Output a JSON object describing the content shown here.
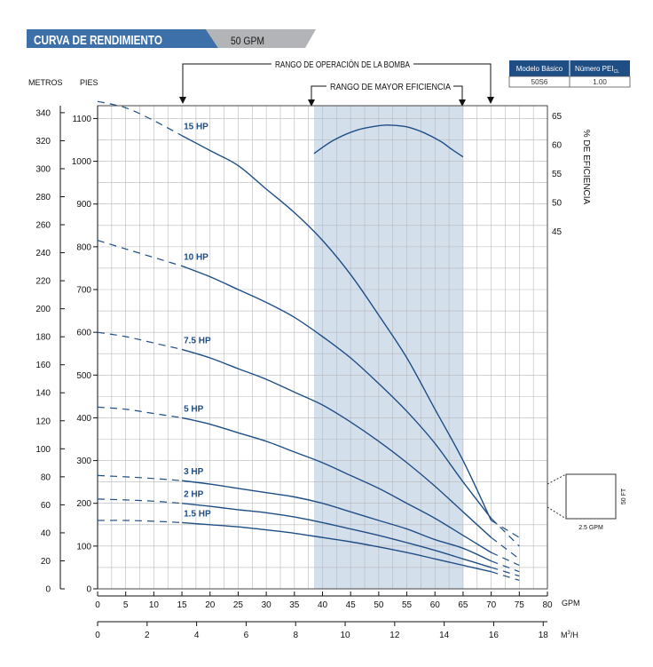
{
  "header": {
    "title": "CURVA DE RENDIMIENTO",
    "subtitle": "50 GPM",
    "title_color": "#3d6fa8",
    "subtitle_bg": "#a9abae"
  },
  "info_table": {
    "headers": [
      "Modelo Básico",
      "Número PEI"
    ],
    "pei_subscript": "CL",
    "values": [
      "50S6",
      "1.00"
    ],
    "header_color": "#1f4e85"
  },
  "annotations": {
    "operating_range": "RANGO DE OPERACIÓN DE LA BOMBA",
    "best_efficiency_range": "RANGO DE MAYOR EFICIENCIA"
  },
  "legend_box": {
    "height_label": "50 FT",
    "width_label": "2.5 GPM"
  },
  "chart_data": {
    "type": "line",
    "title": "CURVA DE RENDIMIENTO",
    "subtitle": "50 GPM",
    "x_primary": {
      "label": "GPM",
      "range": [
        0,
        80
      ],
      "ticks": [
        0,
        5,
        10,
        15,
        20,
        25,
        30,
        35,
        40,
        45,
        50,
        55,
        60,
        65,
        70,
        75,
        80
      ]
    },
    "x_secondary": {
      "label": "M³/H",
      "range": [
        0,
        18.17
      ],
      "ticks": [
        0,
        2,
        4,
        6,
        8,
        10,
        12,
        14,
        16,
        18
      ]
    },
    "y_left_outer": {
      "label": "METROS",
      "range": [
        0,
        345
      ],
      "ticks": [
        0,
        20,
        40,
        60,
        80,
        100,
        120,
        140,
        160,
        180,
        200,
        220,
        240,
        260,
        280,
        300,
        320,
        340
      ]
    },
    "y_left_inner": {
      "label": "PIES",
      "range": [
        0,
        1130
      ],
      "ticks": [
        0,
        100,
        200,
        300,
        400,
        500,
        600,
        700,
        800,
        900,
        1000,
        1100
      ]
    },
    "y_right": {
      "label": "% DE EFICIENCIA",
      "ticks": [
        45,
        50,
        55,
        60,
        65
      ]
    },
    "grid": true,
    "best_efficiency_band_gpm": [
      38.5,
      65
    ],
    "operating_range_gpm": [
      15,
      70
    ],
    "series": [
      {
        "name": "15 HP",
        "label_at": 15,
        "dashed_until": 15,
        "dashed_from": 70,
        "x": [
          0,
          5,
          10,
          15,
          20,
          25,
          30,
          35,
          40,
          45,
          50,
          55,
          60,
          65,
          70,
          75
        ],
        "y": [
          1140,
          1125,
          1095,
          1060,
          1025,
          990,
          935,
          880,
          815,
          735,
          640,
          540,
          420,
          300,
          160,
          120
        ]
      },
      {
        "name": "10 HP",
        "label_at": 15,
        "dashed_until": 15,
        "dashed_from": 70,
        "x": [
          0,
          5,
          10,
          15,
          20,
          25,
          30,
          35,
          40,
          45,
          50,
          55,
          60,
          65,
          70,
          75
        ],
        "y": [
          815,
          795,
          775,
          755,
          730,
          700,
          670,
          635,
          590,
          540,
          480,
          415,
          340,
          250,
          165,
          100
        ]
      },
      {
        "name": "7.5 HP",
        "label_at": 15,
        "dashed_until": 15,
        "dashed_from": 70,
        "x": [
          0,
          5,
          10,
          15,
          20,
          25,
          30,
          35,
          40,
          45,
          50,
          55,
          60,
          65,
          70,
          75
        ],
        "y": [
          600,
          590,
          575,
          560,
          540,
          515,
          490,
          460,
          430,
          390,
          345,
          295,
          240,
          180,
          120,
          70
        ]
      },
      {
        "name": "5 HP",
        "label_at": 15,
        "dashed_until": 15,
        "dashed_from": 70,
        "x": [
          0,
          5,
          10,
          15,
          20,
          25,
          30,
          35,
          40,
          45,
          50,
          55,
          60,
          65,
          70,
          75
        ],
        "y": [
          425,
          420,
          410,
          400,
          385,
          365,
          345,
          320,
          295,
          265,
          235,
          200,
          165,
          125,
          85,
          55
        ]
      },
      {
        "name": "3 HP",
        "label_at": 15,
        "dashed_until": 15,
        "dashed_from": 70,
        "x": [
          0,
          5,
          10,
          15,
          20,
          25,
          30,
          35,
          40,
          45,
          50,
          55,
          60,
          65,
          70,
          75
        ],
        "y": [
          265,
          262,
          258,
          253,
          245,
          235,
          225,
          215,
          200,
          180,
          160,
          140,
          115,
          95,
          65,
          40
        ]
      },
      {
        "name": "2 HP",
        "label_at": 15,
        "dashed_until": 15,
        "dashed_from": 70,
        "x": [
          0,
          5,
          10,
          15,
          20,
          25,
          30,
          35,
          40,
          45,
          50,
          55,
          60,
          65,
          70,
          75
        ],
        "y": [
          210,
          208,
          205,
          200,
          193,
          185,
          178,
          168,
          155,
          140,
          125,
          108,
          90,
          70,
          50,
          30
        ]
      },
      {
        "name": "1.5 HP",
        "label_at": 15,
        "dashed_until": 15,
        "dashed_from": 70,
        "x": [
          0,
          5,
          10,
          15,
          20,
          25,
          30,
          35,
          40,
          45,
          50,
          55,
          60,
          65,
          70,
          75
        ],
        "y": [
          160,
          160,
          158,
          155,
          150,
          145,
          138,
          130,
          120,
          110,
          98,
          85,
          70,
          55,
          40,
          20
        ]
      }
    ],
    "efficiency_curve": {
      "x": [
        38.5,
        42,
        46,
        50,
        52,
        55,
        58,
        61,
        63,
        65
      ],
      "y": [
        58.5,
        60.8,
        62.5,
        63.3,
        63.4,
        63.1,
        62.1,
        60.6,
        59.2,
        57.9
      ]
    }
  }
}
